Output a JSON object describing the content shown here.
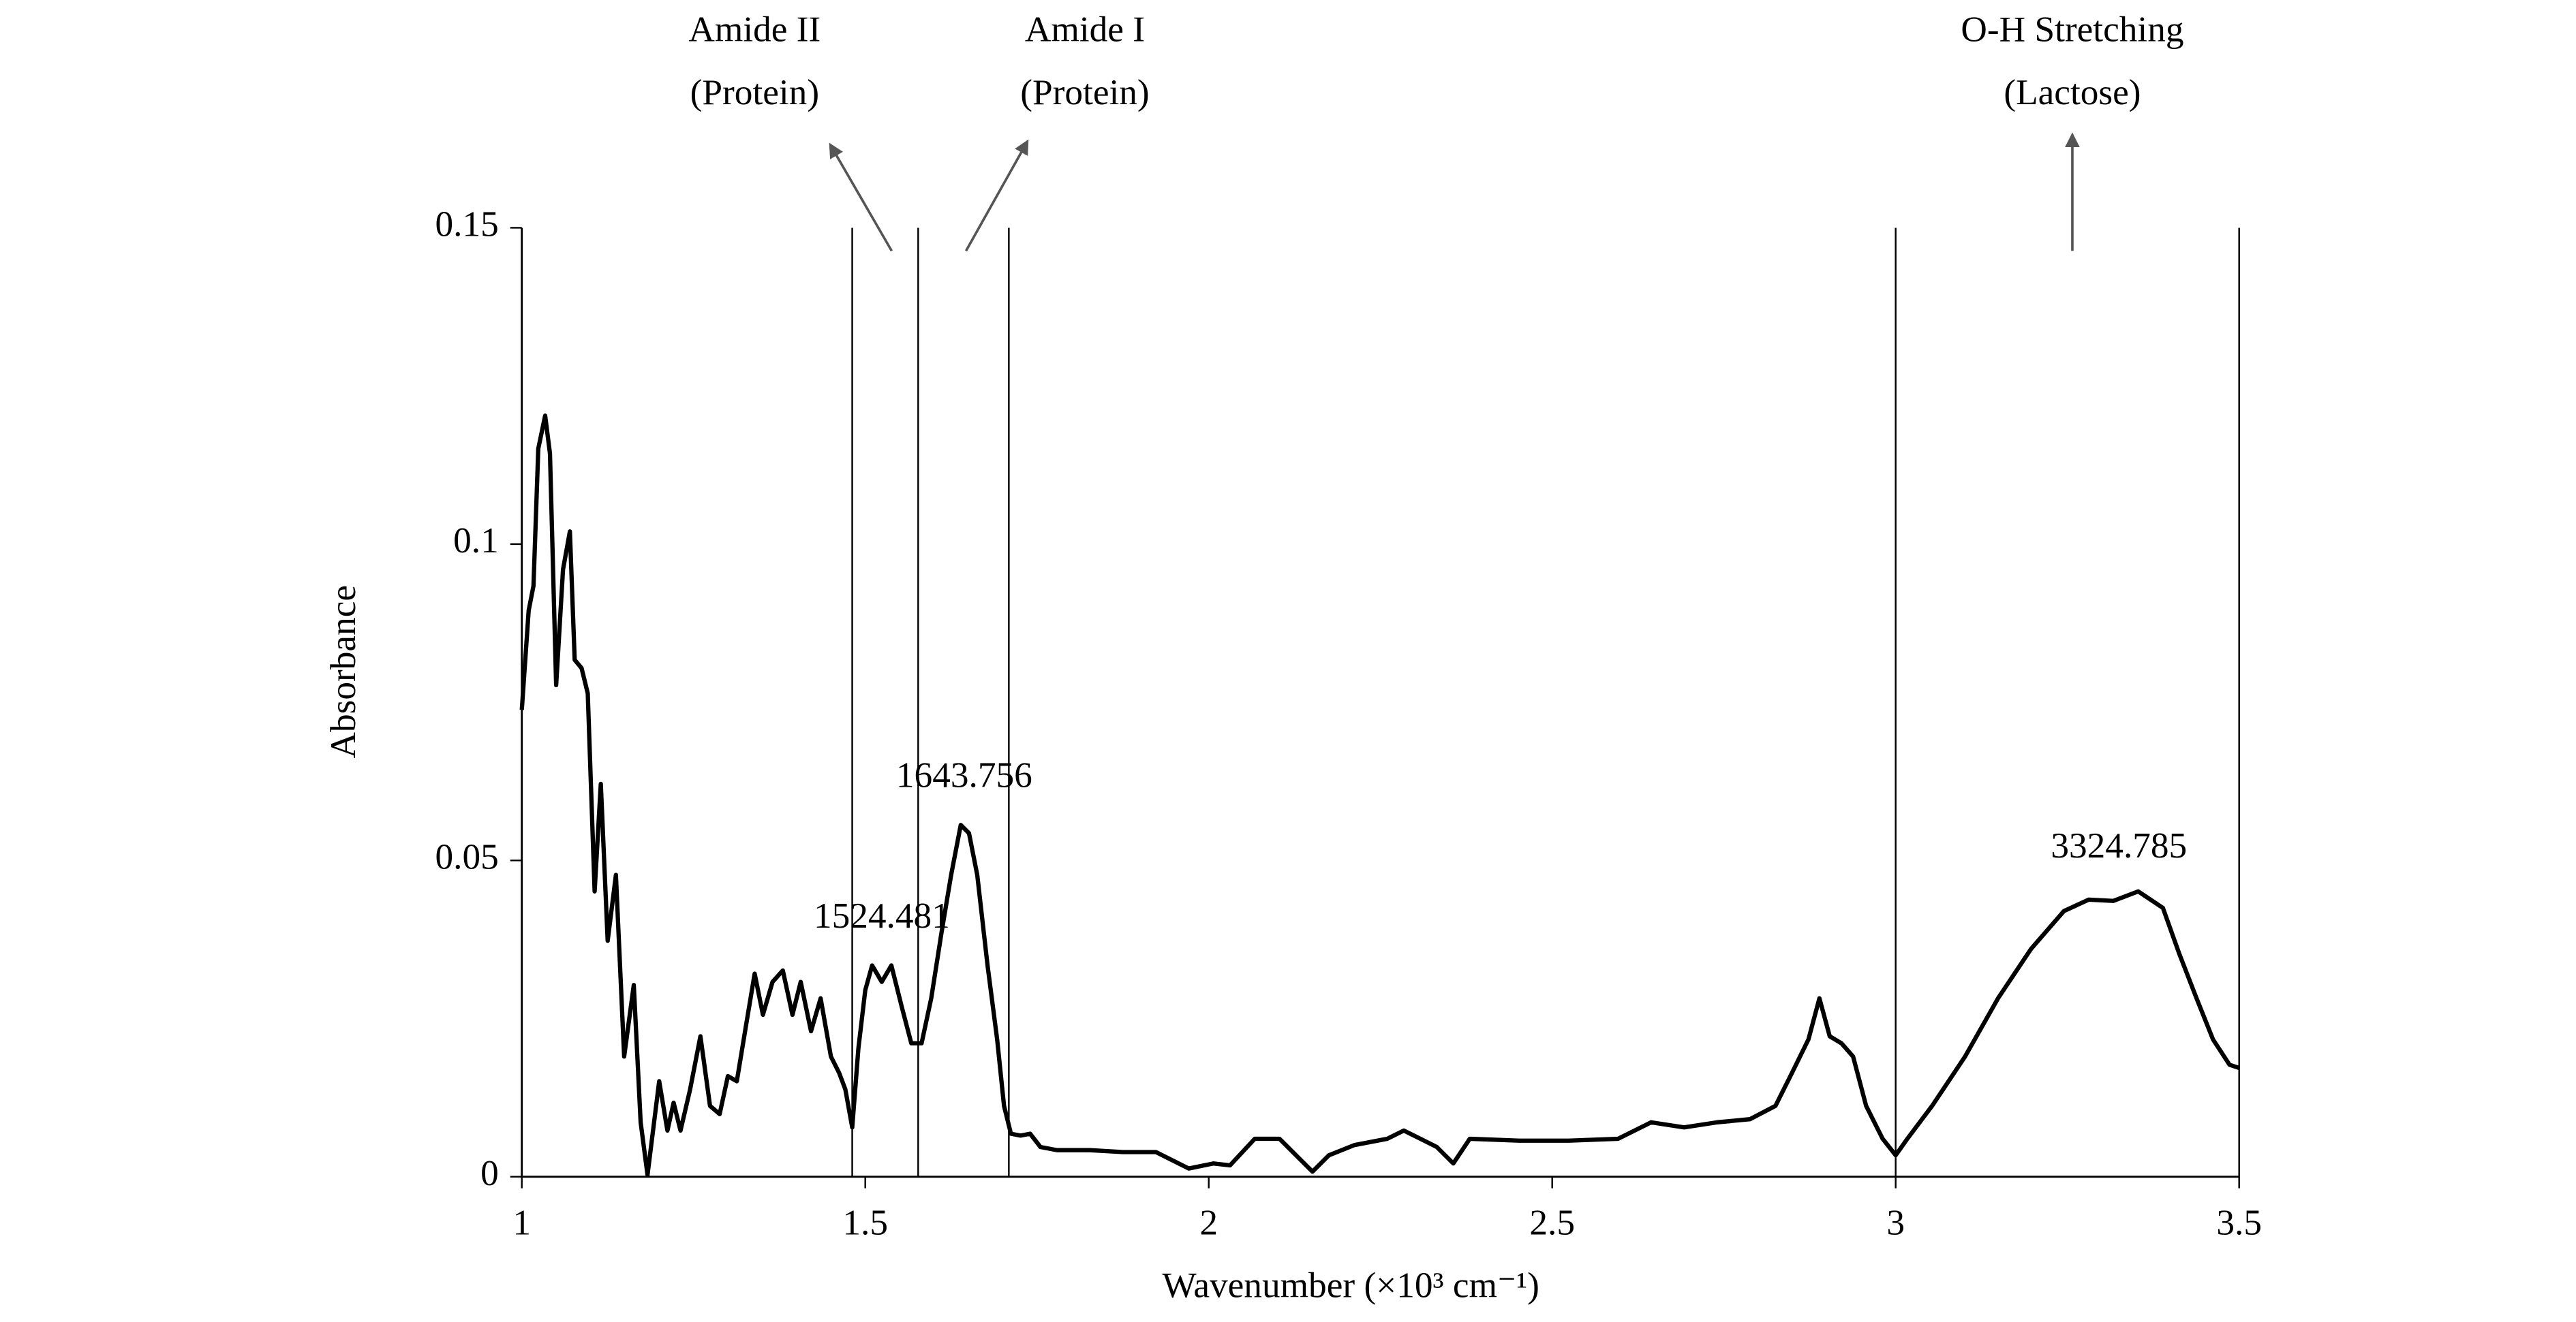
{
  "chart_data": {
    "type": "line",
    "x_label": "Wavenumber (×10³ cm⁻¹)",
    "y_label": "Absorbance",
    "color": "#000000",
    "xlim": [
      1,
      3.5
    ],
    "ylim": [
      0,
      0.15
    ],
    "xticks": [
      1,
      1.5,
      2,
      2.5,
      3,
      3.5
    ],
    "yticks": [
      0,
      0.05,
      0.1,
      0.15
    ],
    "reference_lines": [
      1.481,
      1.577,
      1.709,
      3.0
    ],
    "band_labels": [
      {
        "lines": [
          "Amide II",
          "(Protein)"
        ]
      },
      {
        "lines": [
          "Amide I",
          "(Protein)"
        ]
      },
      {
        "lines": [
          "O-H Stretching",
          "(Lactose)"
        ]
      }
    ],
    "annotations": [
      {
        "text": "1643.756",
        "x": 1.644,
        "y": 0.0556
      },
      {
        "text": "1524.481",
        "x": 1.524,
        "y": 0.0334
      },
      {
        "text": "3324.785",
        "x": 3.325,
        "y": 0.0445
      }
    ],
    "x": [
      1.0,
      1.01,
      1.017,
      1.024,
      1.034,
      1.041,
      1.05,
      1.06,
      1.07,
      1.077,
      1.087,
      1.096,
      1.106,
      1.115,
      1.125,
      1.137,
      1.149,
      1.163,
      1.173,
      1.183,
      1.2,
      1.212,
      1.221,
      1.231,
      1.245,
      1.26,
      1.274,
      1.288,
      1.3,
      1.313,
      1.327,
      1.339,
      1.351,
      1.365,
      1.38,
      1.394,
      1.406,
      1.421,
      1.435,
      1.45,
      1.462,
      1.471,
      1.481,
      1.49,
      1.5,
      1.51,
      1.524,
      1.538,
      1.553,
      1.567,
      1.582,
      1.596,
      1.611,
      1.625,
      1.639,
      1.651,
      1.663,
      1.678,
      1.692,
      1.702,
      1.712,
      1.726,
      1.74,
      1.755,
      1.779,
      1.827,
      1.875,
      1.923,
      1.971,
      2.007,
      2.031,
      2.067,
      2.103,
      2.127,
      2.151,
      2.175,
      2.212,
      2.26,
      2.284,
      2.308,
      2.332,
      2.356,
      2.38,
      2.452,
      2.524,
      2.596,
      2.644,
      2.692,
      2.74,
      2.788,
      2.825,
      2.849,
      2.873,
      2.889,
      2.904,
      2.921,
      2.938,
      2.957,
      2.981,
      3.0,
      3.017,
      3.053,
      3.101,
      3.149,
      3.197,
      3.245,
      3.281,
      3.317,
      3.353,
      3.389,
      3.413,
      3.438,
      3.462,
      3.486,
      3.5
    ],
    "values": [
      0.0738,
      0.0895,
      0.0934,
      0.1151,
      0.1203,
      0.1143,
      0.0777,
      0.096,
      0.102,
      0.0817,
      0.0804,
      0.0764,
      0.0451,
      0.0621,
      0.0373,
      0.0477,
      0.019,
      0.0303,
      0.0086,
      0.0003,
      0.0151,
      0.0073,
      0.0117,
      0.0073,
      0.0138,
      0.0222,
      0.0112,
      0.0099,
      0.0159,
      0.0151,
      0.0243,
      0.0321,
      0.0256,
      0.0308,
      0.0326,
      0.0256,
      0.0308,
      0.023,
      0.0282,
      0.019,
      0.0164,
      0.0138,
      0.0078,
      0.0203,
      0.0295,
      0.0334,
      0.0308,
      0.0334,
      0.0269,
      0.0211,
      0.0211,
      0.0282,
      0.0386,
      0.0477,
      0.0556,
      0.0543,
      0.0477,
      0.0334,
      0.0217,
      0.0112,
      0.0068,
      0.0065,
      0.0068,
      0.0047,
      0.0042,
      0.0042,
      0.0039,
      0.0039,
      0.0013,
      0.0021,
      0.0018,
      0.006,
      0.006,
      0.0034,
      0.0008,
      0.0034,
      0.005,
      0.006,
      0.0073,
      0.006,
      0.0047,
      0.0021,
      0.006,
      0.0057,
      0.0057,
      0.006,
      0.0086,
      0.0078,
      0.0086,
      0.0091,
      0.0112,
      0.0164,
      0.0217,
      0.0282,
      0.0222,
      0.0211,
      0.019,
      0.0112,
      0.006,
      0.0034,
      0.006,
      0.0112,
      0.019,
      0.0282,
      0.036,
      0.042,
      0.0438,
      0.0436,
      0.0451,
      0.0425,
      0.0352,
      0.0282,
      0.0217,
      0.0177,
      0.0172
    ]
  }
}
